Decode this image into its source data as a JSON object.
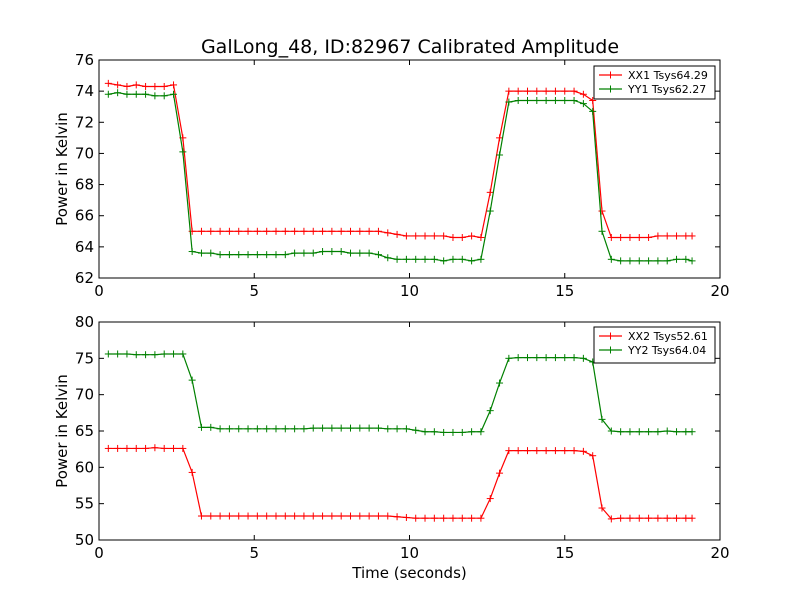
{
  "figure": {
    "title": "GalLong_48, ID:82967 Calibrated Amplitude"
  },
  "chart_data": [
    {
      "type": "line",
      "title": "GalLong_48, ID:82967 Calibrated Amplitude",
      "xlabel": "",
      "ylabel": "Power in Kelvin",
      "xlim": [
        0,
        20
      ],
      "ylim": [
        62,
        76
      ],
      "xticks": [
        "0",
        "5",
        "10",
        "15",
        "20"
      ],
      "yticks": [
        "62",
        "64",
        "66",
        "68",
        "70",
        "72",
        "74",
        "76"
      ],
      "xtick_values": [
        0,
        5,
        10,
        15,
        20
      ],
      "ytick_values": [
        62,
        64,
        66,
        68,
        70,
        72,
        74,
        76
      ],
      "grid": false,
      "legend_position": "top-right",
      "x": [
        0.3,
        0.6,
        0.9,
        1.2,
        1.5,
        1.8,
        2.1,
        2.4,
        2.7,
        3.0,
        3.3,
        3.6,
        3.9,
        4.2,
        4.5,
        4.8,
        5.1,
        5.4,
        5.7,
        6.0,
        6.3,
        6.6,
        6.9,
        7.2,
        7.5,
        7.8,
        8.1,
        8.4,
        8.7,
        9.0,
        9.3,
        9.6,
        9.9,
        10.2,
        10.5,
        10.8,
        11.1,
        11.4,
        11.7,
        12.0,
        12.3,
        12.6,
        12.9,
        13.2,
        13.5,
        13.8,
        14.1,
        14.4,
        14.7,
        15.0,
        15.3,
        15.6,
        15.9,
        16.2,
        16.5,
        16.8,
        17.1,
        17.4,
        17.7,
        18.0,
        18.3,
        18.6,
        18.9,
        19.1
      ],
      "series": [
        {
          "name": "XX1 Tsys64.29",
          "color": "#ff0000",
          "values": [
            74.5,
            74.4,
            74.3,
            74.4,
            74.3,
            74.3,
            74.3,
            74.4,
            71.0,
            65.0,
            65.0,
            65.0,
            65.0,
            65.0,
            65.0,
            65.0,
            65.0,
            65.0,
            65.0,
            65.0,
            65.0,
            65.0,
            65.0,
            65.0,
            65.0,
            65.0,
            65.0,
            65.0,
            65.0,
            65.0,
            64.9,
            64.8,
            64.7,
            64.7,
            64.7,
            64.7,
            64.7,
            64.6,
            64.6,
            64.7,
            64.6,
            67.5,
            71.0,
            74.0,
            74.0,
            74.0,
            74.0,
            74.0,
            74.0,
            74.0,
            74.0,
            73.8,
            73.4,
            66.3,
            64.6,
            64.6,
            64.6,
            64.6,
            64.6,
            64.7,
            64.7,
            64.7,
            64.7,
            64.7
          ]
        },
        {
          "name": "YY1 Tsys62.27",
          "color": "#008000",
          "values": [
            73.8,
            73.9,
            73.8,
            73.8,
            73.8,
            73.7,
            73.7,
            73.8,
            70.1,
            63.7,
            63.6,
            63.6,
            63.5,
            63.5,
            63.5,
            63.5,
            63.5,
            63.5,
            63.5,
            63.5,
            63.6,
            63.6,
            63.6,
            63.7,
            63.7,
            63.7,
            63.6,
            63.6,
            63.6,
            63.5,
            63.3,
            63.2,
            63.2,
            63.2,
            63.2,
            63.2,
            63.1,
            63.2,
            63.2,
            63.1,
            63.2,
            66.3,
            69.9,
            73.3,
            73.4,
            73.4,
            73.4,
            73.4,
            73.4,
            73.4,
            73.4,
            73.2,
            72.7,
            65.0,
            63.2,
            63.1,
            63.1,
            63.1,
            63.1,
            63.1,
            63.1,
            63.2,
            63.2,
            63.1
          ]
        }
      ]
    },
    {
      "type": "line",
      "title": "",
      "xlabel": "Time (seconds)",
      "ylabel": "Power in Kelvin",
      "xlim": [
        0,
        20
      ],
      "ylim": [
        50,
        80
      ],
      "xticks": [
        "0",
        "5",
        "10",
        "15",
        "20"
      ],
      "yticks": [
        "50",
        "55",
        "60",
        "65",
        "70",
        "75",
        "80"
      ],
      "xtick_values": [
        0,
        5,
        10,
        15,
        20
      ],
      "ytick_values": [
        50,
        55,
        60,
        65,
        70,
        75,
        80
      ],
      "grid": false,
      "legend_position": "top-right",
      "x": [
        0.3,
        0.6,
        0.9,
        1.2,
        1.5,
        1.8,
        2.1,
        2.4,
        2.7,
        3.0,
        3.3,
        3.6,
        3.9,
        4.2,
        4.5,
        4.8,
        5.1,
        5.4,
        5.7,
        6.0,
        6.3,
        6.6,
        6.9,
        7.2,
        7.5,
        7.8,
        8.1,
        8.4,
        8.7,
        9.0,
        9.3,
        9.6,
        9.9,
        10.2,
        10.5,
        10.8,
        11.1,
        11.4,
        11.7,
        12.0,
        12.3,
        12.6,
        12.9,
        13.2,
        13.5,
        13.8,
        14.1,
        14.4,
        14.7,
        15.0,
        15.3,
        15.6,
        15.9,
        16.2,
        16.5,
        16.8,
        17.1,
        17.4,
        17.7,
        18.0,
        18.3,
        18.6,
        18.9,
        19.1
      ],
      "series": [
        {
          "name": "XX2 Tsys52.61",
          "color": "#ff0000",
          "values": [
            62.6,
            62.6,
            62.6,
            62.6,
            62.6,
            62.7,
            62.6,
            62.6,
            62.6,
            59.3,
            53.3,
            53.3,
            53.3,
            53.3,
            53.3,
            53.3,
            53.3,
            53.3,
            53.3,
            53.3,
            53.3,
            53.3,
            53.3,
            53.3,
            53.3,
            53.3,
            53.3,
            53.3,
            53.3,
            53.3,
            53.3,
            53.2,
            53.1,
            53.0,
            53.0,
            53.0,
            53.0,
            53.0,
            53.0,
            53.0,
            53.0,
            55.7,
            59.2,
            62.3,
            62.3,
            62.3,
            62.3,
            62.3,
            62.3,
            62.3,
            62.3,
            62.2,
            61.6,
            54.4,
            52.9,
            53.0,
            53.0,
            53.0,
            53.0,
            53.0,
            53.0,
            53.0,
            53.0,
            53.0
          ]
        },
        {
          "name": "YY2 Tsys64.04",
          "color": "#008000",
          "values": [
            75.6,
            75.6,
            75.6,
            75.5,
            75.5,
            75.5,
            75.6,
            75.6,
            75.6,
            72.0,
            65.5,
            65.5,
            65.3,
            65.3,
            65.3,
            65.3,
            65.3,
            65.3,
            65.3,
            65.3,
            65.3,
            65.3,
            65.4,
            65.4,
            65.4,
            65.4,
            65.4,
            65.4,
            65.4,
            65.4,
            65.3,
            65.3,
            65.3,
            65.1,
            64.9,
            64.9,
            64.8,
            64.8,
            64.8,
            64.9,
            64.9,
            67.8,
            71.6,
            75.0,
            75.1,
            75.1,
            75.1,
            75.1,
            75.1,
            75.1,
            75.1,
            75.0,
            74.5,
            66.6,
            65.0,
            64.9,
            64.9,
            64.9,
            64.9,
            64.9,
            65.0,
            64.9,
            64.9,
            64.9
          ]
        }
      ]
    }
  ]
}
